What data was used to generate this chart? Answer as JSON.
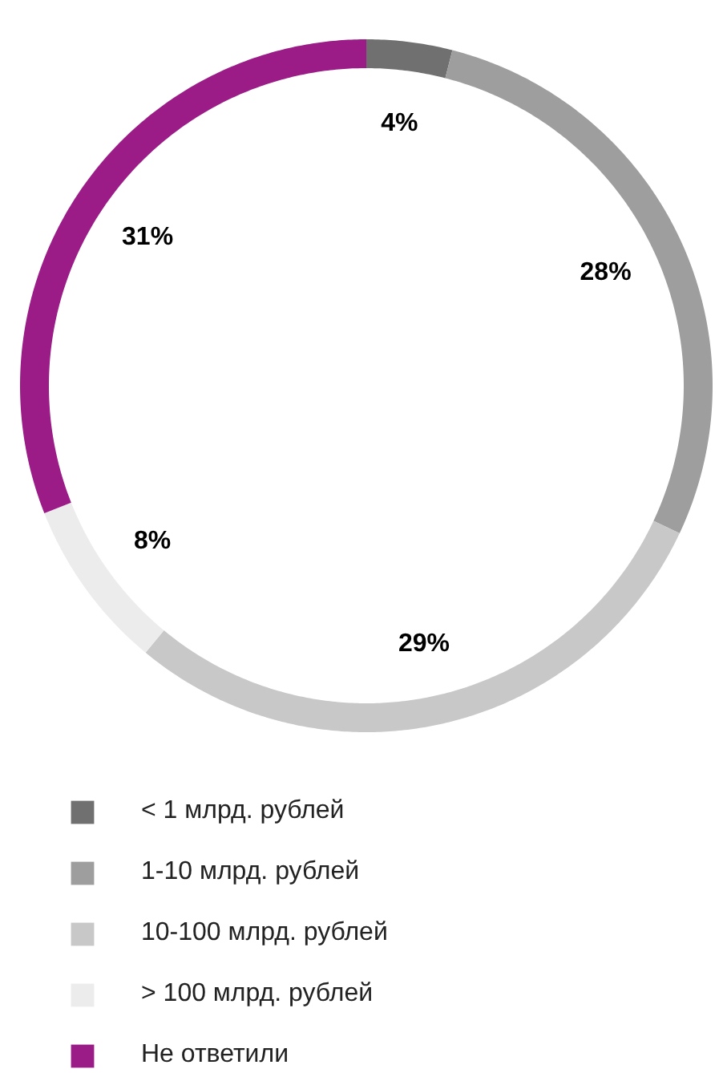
{
  "chart_data": {
    "type": "donut",
    "categories": [
      "< 1 млрд. рублей",
      "1-10 млрд. рублей",
      "10-100 млрд. рублей",
      "> 100 млрд. рублей",
      "Не ответили"
    ],
    "values": [
      4,
      28,
      29,
      8,
      31
    ],
    "colors": [
      "#707070",
      "#9e9e9e",
      "#c8c8c8",
      "#ececec",
      "#9b1b87"
    ],
    "value_labels": [
      "4%",
      "28%",
      "29%",
      "8%",
      "31%"
    ],
    "legend": "bottom"
  }
}
